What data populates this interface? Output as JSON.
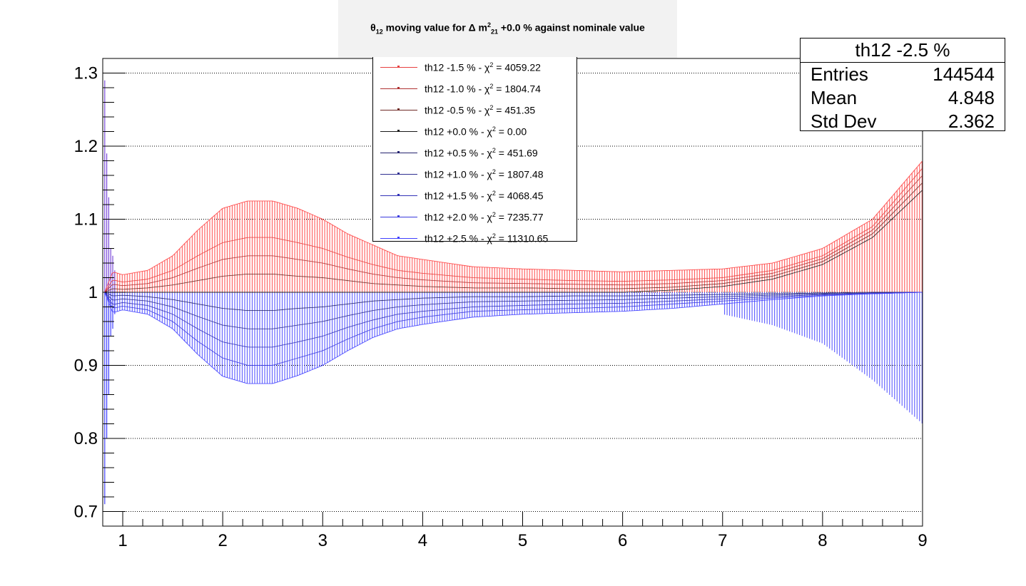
{
  "title": {
    "theta": "θ",
    "theta_sub": "12",
    "mid": " moving value for Δ m",
    "m_sup": "2",
    "m_sub": "21",
    "tail": " +0.0 % against nominale value"
  },
  "stats": {
    "title": "th12 -2.5 %",
    "rows": [
      {
        "key": "Entries",
        "value": "144544"
      },
      {
        "key": "Mean",
        "value": "4.848"
      },
      {
        "key": "Std Dev",
        "value": "2.362"
      }
    ]
  },
  "legend": {
    "entries": [
      {
        "label": "th12 -1.5 % - χ",
        "sup": "2",
        "value": " = 4059.22",
        "color": "#e8403f"
      },
      {
        "label": "th12 -1.0 % - χ",
        "sup": "2",
        "value": " = 1804.74",
        "color": "#b03232"
      },
      {
        "label": "th12 -0.5 % - χ",
        "sup": "2",
        "value": " = 451.35",
        "color": "#6e2a25"
      },
      {
        "label": "th12 +0.0 % - χ",
        "sup": "2",
        "value": " = 0.00",
        "color": "#1a1a1a"
      },
      {
        "label": "th12 +0.5 % - χ",
        "sup": "2",
        "value": " = 451.69",
        "color": "#24236e"
      },
      {
        "label": "th12 +1.0 % - χ",
        "sup": "2",
        "value": " = 1807.48",
        "color": "#2f2f90"
      },
      {
        "label": "th12 +1.5 % - χ",
        "sup": "2",
        "value": " = 4068.45",
        "color": "#3333b8"
      },
      {
        "label": "th12 +2.0 % - χ",
        "sup": "2",
        "value": " = 7235.77",
        "color": "#3a3ade"
      },
      {
        "label": "th12 +2.5 % - χ",
        "sup": "2",
        "value": " = 11310.65",
        "color": "#4040ff"
      }
    ]
  },
  "chart_data": {
    "type": "line",
    "xlim": [
      0.8,
      9.0
    ],
    "ylim": [
      0.68,
      1.32
    ],
    "x_ticks": [
      1,
      2,
      3,
      4,
      5,
      6,
      7,
      8,
      9
    ],
    "y_ticks": [
      0.7,
      0.8,
      0.9,
      1,
      1.1,
      1.2,
      1.3
    ],
    "y_tick_labels": [
      "0.7",
      "0.8",
      "0.9",
      "1",
      "1.1",
      "1.2",
      "1.3"
    ],
    "grid": "horizontal dotted",
    "bin_width": 0.025,
    "x": [
      0.82,
      0.9,
      1.0,
      1.25,
      1.5,
      1.75,
      2.0,
      2.25,
      2.5,
      2.75,
      3.0,
      3.25,
      3.5,
      3.75,
      4.0,
      4.5,
      5.0,
      5.5,
      6.0,
      6.5,
      7.0,
      7.5,
      8.0,
      8.5,
      9.0
    ],
    "series": [
      {
        "name": "th12 -2.5 %",
        "color": "#ff4040",
        "values": [
          1.0,
          1.028,
          1.024,
          1.03,
          1.05,
          1.085,
          1.115,
          1.125,
          1.125,
          1.115,
          1.1,
          1.08,
          1.065,
          1.05,
          1.045,
          1.035,
          1.032,
          1.03,
          1.028,
          1.03,
          1.032,
          1.04,
          1.06,
          1.1,
          1.18
        ]
      },
      {
        "name": "th12 -1.5 %",
        "color": "#e8403f",
        "values": [
          1.0,
          1.017,
          1.014,
          1.018,
          1.03,
          1.05,
          1.068,
          1.075,
          1.075,
          1.068,
          1.06,
          1.048,
          1.038,
          1.03,
          1.026,
          1.02,
          1.018,
          1.016,
          1.015,
          1.017,
          1.02,
          1.03,
          1.05,
          1.09,
          1.17
        ]
      },
      {
        "name": "th12 -1.0 %",
        "color": "#b03232",
        "values": [
          1.0,
          1.011,
          1.009,
          1.012,
          1.02,
          1.033,
          1.045,
          1.05,
          1.05,
          1.045,
          1.04,
          1.032,
          1.025,
          1.02,
          1.017,
          1.013,
          1.012,
          1.011,
          1.01,
          1.012,
          1.016,
          1.026,
          1.046,
          1.085,
          1.16
        ]
      },
      {
        "name": "th12 -0.5 %",
        "color": "#6e2a25",
        "values": [
          1.0,
          1.005,
          1.004,
          1.006,
          1.01,
          1.016,
          1.022,
          1.025,
          1.025,
          1.022,
          1.02,
          1.016,
          1.012,
          1.01,
          1.008,
          1.006,
          1.006,
          1.005,
          1.005,
          1.007,
          1.012,
          1.022,
          1.042,
          1.08,
          1.15
        ]
      },
      {
        "name": "th12 +0.0 %",
        "color": "#1a1a1a",
        "values": [
          1.0,
          1.0,
          1.0,
          1.0,
          1.0,
          1.0,
          1.0,
          1.0,
          1.0,
          1.0,
          1.0,
          1.0,
          1.0,
          1.0,
          1.0,
          1.0,
          1.0,
          1.0,
          1.0,
          1.003,
          1.008,
          1.018,
          1.038,
          1.075,
          1.14
        ]
      },
      {
        "name": "th12 +0.5 %",
        "color": "#24236e",
        "values": [
          1.0,
          0.995,
          0.996,
          0.994,
          0.99,
          0.984,
          0.978,
          0.975,
          0.975,
          0.978,
          0.98,
          0.984,
          0.988,
          0.99,
          0.992,
          0.994,
          0.994,
          0.995,
          0.995,
          0.996,
          0.997,
          0.998,
          0.999,
          1.0,
          1.0
        ]
      },
      {
        "name": "th12 +1.0 %",
        "color": "#2f2f90",
        "values": [
          1.0,
          0.989,
          0.991,
          0.988,
          0.98,
          0.967,
          0.955,
          0.95,
          0.95,
          0.955,
          0.96,
          0.968,
          0.975,
          0.98,
          0.983,
          0.987,
          0.988,
          0.989,
          0.99,
          0.992,
          0.994,
          0.996,
          0.998,
          0.999,
          1.0
        ]
      },
      {
        "name": "th12 +1.5 %",
        "color": "#3333b8",
        "values": [
          1.0,
          0.983,
          0.986,
          0.982,
          0.97,
          0.95,
          0.932,
          0.925,
          0.925,
          0.932,
          0.94,
          0.952,
          0.962,
          0.97,
          0.974,
          0.98,
          0.982,
          0.984,
          0.985,
          0.988,
          0.991,
          0.994,
          0.997,
          0.999,
          1.0
        ]
      },
      {
        "name": "th12 +2.0 %",
        "color": "#3a3ade",
        "values": [
          1.0,
          0.978,
          0.981,
          0.976,
          0.96,
          0.933,
          0.91,
          0.9,
          0.9,
          0.91,
          0.92,
          0.936,
          0.95,
          0.96,
          0.966,
          0.974,
          0.976,
          0.978,
          0.98,
          0.984,
          0.988,
          0.992,
          0.996,
          0.998,
          1.0
        ]
      },
      {
        "name": "th12 +2.5 %",
        "color": "#4040ff",
        "values": [
          1.0,
          0.972,
          0.976,
          0.97,
          0.95,
          0.915,
          0.885,
          0.875,
          0.875,
          0.886,
          0.9,
          0.92,
          0.938,
          0.95,
          0.956,
          0.966,
          0.97,
          0.972,
          0.974,
          0.978,
          0.984,
          0.99,
          0.995,
          0.998,
          1.0
        ]
      }
    ],
    "envelope": {
      "color": "#4040ff",
      "x": [
        7.0,
        7.5,
        8.0,
        8.5,
        9.0
      ],
      "low": [
        0.97,
        0.955,
        0.93,
        0.88,
        0.82
      ]
    },
    "spike": {
      "x": [
        0.82,
        0.84,
        0.86,
        0.88,
        0.9,
        0.92
      ],
      "high": [
        1.29,
        1.19,
        1.13,
        1.06,
        1.05,
        1.03
      ],
      "low": [
        0.71,
        0.8,
        0.86,
        0.94,
        0.95,
        0.97
      ]
    }
  }
}
